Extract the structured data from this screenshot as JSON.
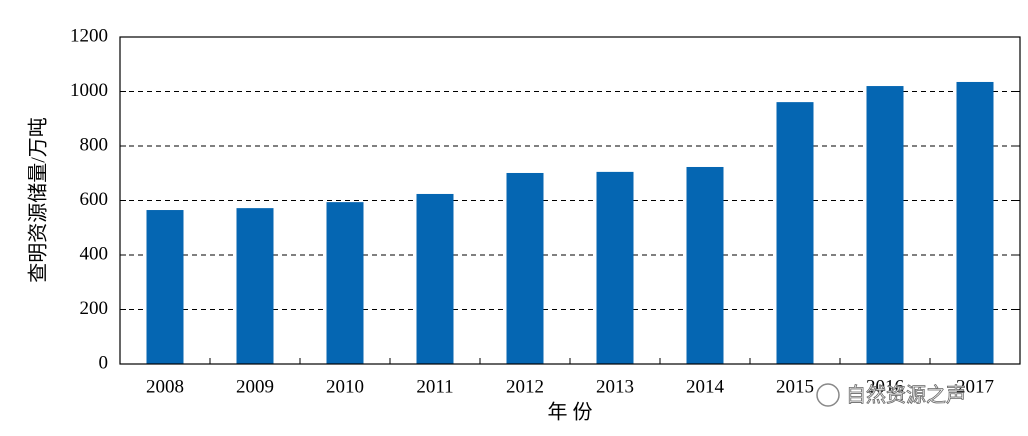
{
  "chart_data": {
    "type": "bar",
    "x_label": "年 份",
    "y_label": "查明资源储量/万吨",
    "categories": [
      "2008",
      "2009",
      "2010",
      "2011",
      "2012",
      "2013",
      "2014",
      "2015",
      "2016",
      "2017"
    ],
    "values": [
      565,
      572,
      594,
      624,
      701,
      705,
      723,
      961,
      1020,
      1035
    ],
    "color": "#0566b2",
    "ylim": [
      0,
      1200
    ],
    "yticks": [
      0,
      200,
      400,
      600,
      800,
      1000,
      1200
    ],
    "grid": true,
    "watermark": "自然资源之声"
  }
}
